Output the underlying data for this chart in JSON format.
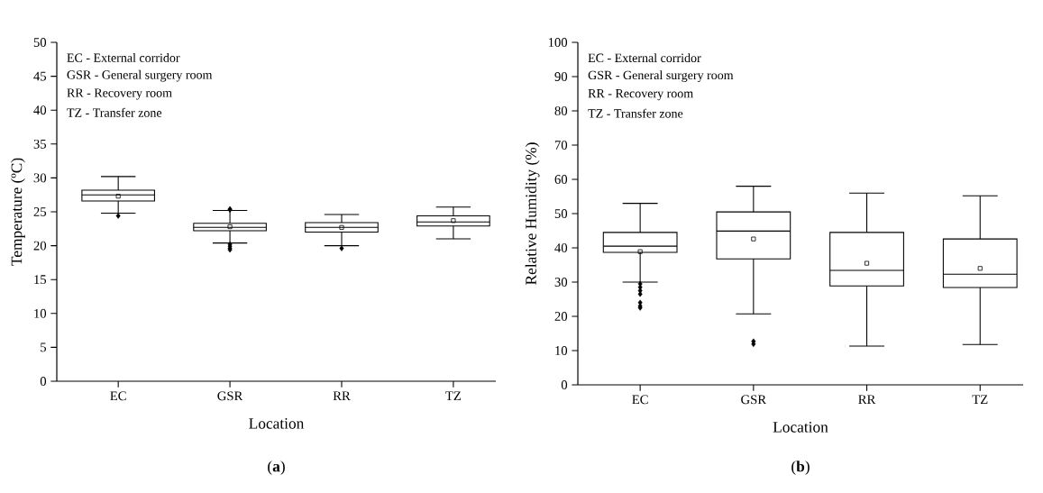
{
  "chart_data": [
    {
      "type": "box",
      "title": "(**a**)",
      "xlabel": "Location",
      "ylabel": "Temperature (ºC)",
      "categories": [
        "EC",
        "GSR",
        "RR",
        "TZ"
      ],
      "boxes": [
        {
          "low": 24.8,
          "q1": 26.6,
          "median": 27.5,
          "q3": 28.2,
          "high": 30.2,
          "mean": 27.3,
          "outliers": [
            24.4
          ]
        },
        {
          "low": 20.4,
          "q1": 22.2,
          "median": 22.7,
          "q3": 23.3,
          "high": 25.2,
          "mean": 22.8,
          "outliers": [
            25.4,
            25.3,
            20.2,
            19.9,
            19.6,
            19.4
          ]
        },
        {
          "low": 20.0,
          "q1": 22.0,
          "median": 22.7,
          "q3": 23.4,
          "high": 24.6,
          "mean": 22.7,
          "outliers": [
            19.6
          ]
        },
        {
          "low": 21.0,
          "q1": 22.9,
          "median": 23.5,
          "q3": 24.4,
          "high": 25.7,
          "mean": 23.7
        }
      ],
      "ylim": [
        0,
        50
      ],
      "yticks": [
        0,
        5,
        10,
        15,
        20,
        25,
        30,
        35,
        40,
        45,
        50
      ],
      "marker": "diamond",
      "annotations": [
        "EC - External corridor",
        "GSR - General surgery room",
        "RR - Recovery room",
        "TZ - Transfer zone"
      ]
    },
    {
      "type": "box",
      "title": "(**b**)",
      "xlabel": "Location",
      "ylabel": "Relative Humidity (%)",
      "categories": [
        "EC",
        "GSR",
        "RR",
        "TZ"
      ],
      "boxes": [
        {
          "low": 30.0,
          "q1": 38.7,
          "median": 40.5,
          "q3": 44.5,
          "high": 53.0,
          "mean": 38.9,
          "outliers": [
            29.5,
            28.5,
            27.5,
            26.5,
            24.0,
            23.0,
            22.5
          ]
        },
        {
          "low": 20.7,
          "q1": 36.8,
          "median": 44.9,
          "q3": 50.5,
          "high": 58.0,
          "mean": 42.6,
          "outliers": [
            12.7,
            11.9
          ]
        },
        {
          "low": 11.3,
          "q1": 28.9,
          "median": 33.4,
          "q3": 44.5,
          "high": 56.0,
          "mean": 35.5
        },
        {
          "low": 11.8,
          "q1": 28.4,
          "median": 32.3,
          "q3": 42.6,
          "high": 55.2,
          "mean": 34.0
        }
      ],
      "ylim": [
        0,
        100
      ],
      "yticks": [
        0,
        10,
        20,
        30,
        40,
        50,
        60,
        70,
        80,
        90,
        100
      ],
      "marker": "diamond",
      "annotations": [
        "EC - External corridor",
        "GSR - General surgery room",
        "RR - Recovery room",
        "TZ - Transfer zone"
      ]
    }
  ]
}
